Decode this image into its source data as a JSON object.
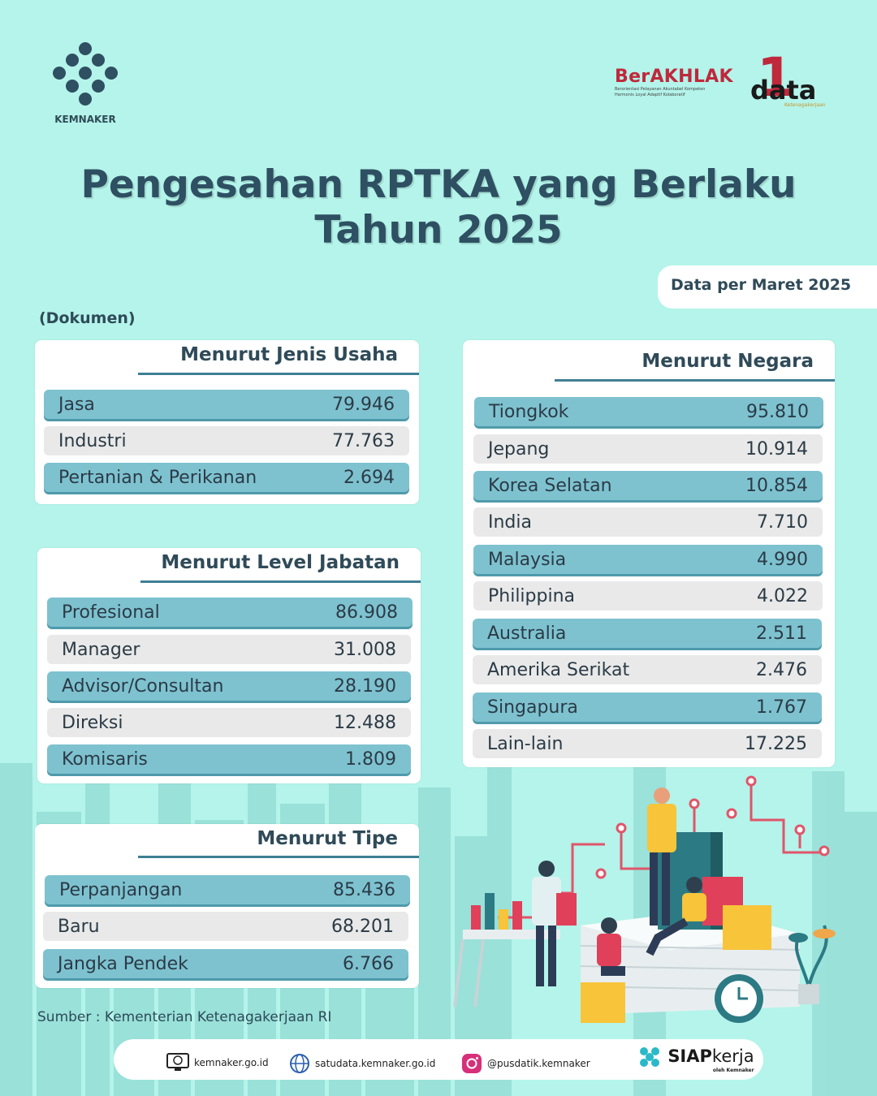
{
  "header": {
    "org_name": "KEMNAKER",
    "berakhlak": {
      "title": "BerAKHLAK",
      "tagline_1": "Berorientasi Pelayanan Akuntabel Kompeten",
      "tagline_2": "Harmonis Loyal Adaptif Kolaboratif"
    },
    "onedata": {
      "number": "1",
      "word": "data",
      "sub": "Ketenagakerjaan"
    }
  },
  "title_line1": "Pengesahan RPTKA yang Berlaku",
  "title_line2": "Tahun 2025",
  "date_tag": "Data per Maret 2025",
  "unit": "(Dokumen)",
  "jenis_usaha": {
    "title": "Menurut Jenis Usaha",
    "rows": [
      {
        "label": "Jasa",
        "value": "79.946"
      },
      {
        "label": "Industri",
        "value": "77.763"
      },
      {
        "label": "Pertanian & Perikanan",
        "value": "2.694"
      }
    ]
  },
  "level_jabatan": {
    "title": "Menurut Level Jabatan",
    "rows": [
      {
        "label": "Profesional",
        "value": "86.908"
      },
      {
        "label": "Manager",
        "value": "31.008"
      },
      {
        "label": "Advisor/Consultan",
        "value": "28.190"
      },
      {
        "label": "Direksi",
        "value": "12.488"
      },
      {
        "label": "Komisaris",
        "value": "1.809"
      }
    ]
  },
  "tipe": {
    "title": "Menurut Tipe",
    "rows": [
      {
        "label": "Perpanjangan",
        "value": "85.436"
      },
      {
        "label": "Baru",
        "value": "68.201"
      },
      {
        "label": "Jangka Pendek",
        "value": "6.766"
      }
    ]
  },
  "negara": {
    "title": "Menurut Negara",
    "rows": [
      {
        "label": "Tiongkok",
        "value": "95.810"
      },
      {
        "label": "Jepang",
        "value": "10.914"
      },
      {
        "label": "Korea Selatan",
        "value": "10.854"
      },
      {
        "label": "India",
        "value": "7.710"
      },
      {
        "label": "Malaysia",
        "value": "4.990"
      },
      {
        "label": "Philippina",
        "value": "4.022"
      },
      {
        "label": "Australia",
        "value": "2.511"
      },
      {
        "label": "Amerika Serikat",
        "value": "2.476"
      },
      {
        "label": "Singapura",
        "value": "1.767"
      },
      {
        "label": "Lain-lain",
        "value": "17.225"
      }
    ]
  },
  "source": "Sumber : Kementerian Ketenagakerjaan RI",
  "footer": {
    "website": "kemnaker.go.id",
    "satudata": "satudata.kemnaker.go.id",
    "instagram": "@pusdatik.kemnaker",
    "siap_bold": "SIAP",
    "siap_light": "kerja",
    "siap_sub": "oleh Kemnaker"
  },
  "colors": {
    "bg": "#b4f4ea",
    "row_blue": "#7ec2d0",
    "row_grey": "#e9e9e9",
    "title": "#2e5062",
    "berakhlak_red": "#c0283b"
  }
}
